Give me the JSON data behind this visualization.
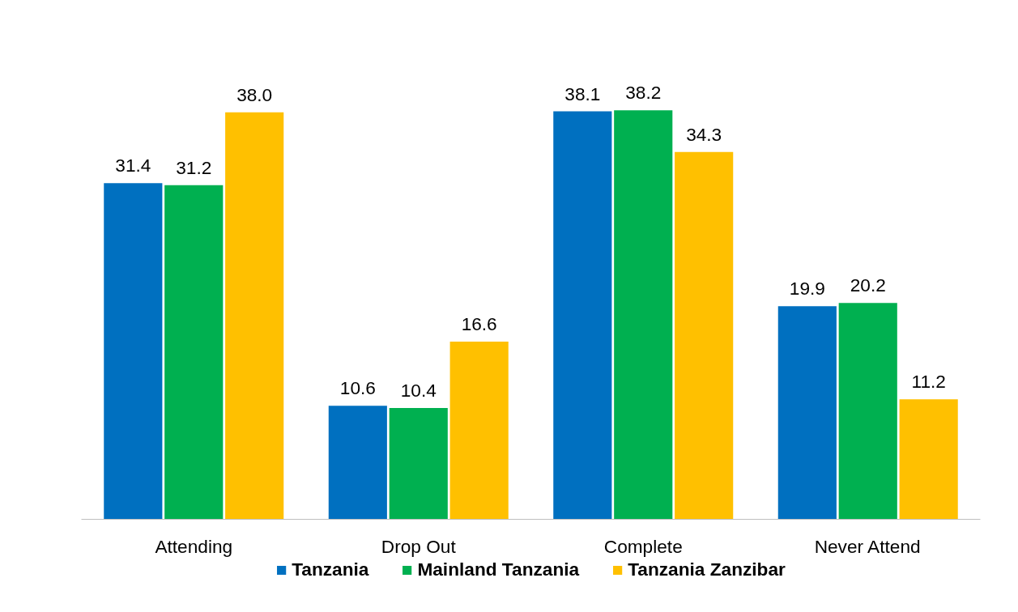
{
  "chart_data": {
    "type": "bar",
    "categories": [
      "Attending",
      "Drop Out",
      "Complete",
      "Never Attend"
    ],
    "series": [
      {
        "name": "Tanzania",
        "color": "#0070c0",
        "values": [
          31.4,
          10.6,
          38.1,
          19.9
        ],
        "value_labels": [
          "31.4",
          "10.6",
          "38.1",
          "19.9"
        ]
      },
      {
        "name": "Mainland Tanzania",
        "color": "#00b050",
        "values": [
          31.2,
          10.4,
          38.2,
          20.2
        ],
        "value_labels": [
          "31.2",
          "10.4",
          "38.2",
          "20.2"
        ]
      },
      {
        "name": "Tanzania Zanzibar",
        "color": "#ffc000",
        "values": [
          38.0,
          16.6,
          34.3,
          11.2
        ],
        "value_labels": [
          "38.0",
          "16.6",
          "34.3",
          "11.2"
        ]
      }
    ],
    "legend": "bottom",
    "grid": false
  }
}
